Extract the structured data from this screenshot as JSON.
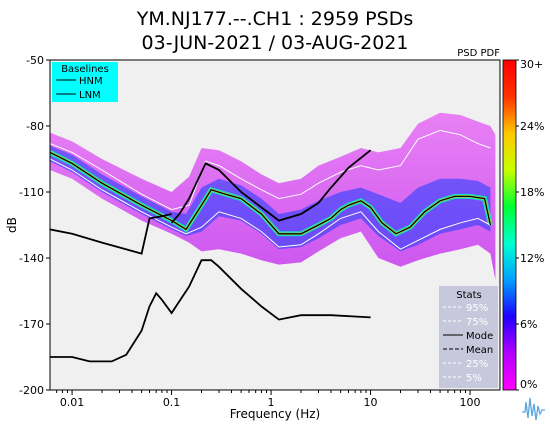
{
  "chart_data": {
    "type": "heatmap",
    "title_line1": "YM.NJ177.--.CH1 : 2959 PSDs",
    "title_line2": "03-JUN-2021 / 03-AUG-2021",
    "pdf_label": "PSD PDF",
    "xlabel": "Frequency (Hz)",
    "ylabel": "dB",
    "x_scale": "log",
    "xlim": [
      0.006,
      200
    ],
    "ylim": [
      -200,
      -50
    ],
    "x_ticks": [
      {
        "value": 0.01,
        "label": "0.01"
      },
      {
        "value": 0.1,
        "label": "0.1"
      },
      {
        "value": 1,
        "label": "1"
      },
      {
        "value": 10,
        "label": "10"
      },
      {
        "value": 100,
        "label": "100"
      }
    ],
    "y_ticks": [
      {
        "value": -50,
        "label": "-50"
      },
      {
        "value": -80,
        "label": "-80"
      },
      {
        "value": -110,
        "label": "-110"
      },
      {
        "value": -140,
        "label": "-140"
      },
      {
        "value": -170,
        "label": "-170"
      },
      {
        "value": -200,
        "label": "-200"
      }
    ],
    "colorbar": {
      "colors": [
        "#ff00ff",
        "#b400ff",
        "#1e00ff",
        "#00a0ff",
        "#00ffd2",
        "#00ff32",
        "#c8ff00",
        "#ffc800",
        "#ff3200",
        "#ff0000"
      ],
      "ticks": [
        {
          "value": 0,
          "label": "0%"
        },
        {
          "value": 6,
          "label": "6%"
        },
        {
          "value": 12,
          "label": "12%"
        },
        {
          "value": 18,
          "label": "18%"
        },
        {
          "value": 24,
          "label": "24%"
        },
        {
          "value": 30,
          "label": "30+"
        }
      ],
      "range": [
        0,
        30
      ]
    },
    "baselines_legend": {
      "title": "Baselines",
      "items": [
        "HNM",
        "LNM"
      ],
      "background": "#00ffff",
      "placement": "top-left"
    },
    "stats_legend": {
      "title": "Stats",
      "items": [
        {
          "label": "95%",
          "color": "#ffffff",
          "style": "dashed"
        },
        {
          "label": "75%",
          "color": "#ffffff",
          "style": "dashed"
        },
        {
          "label": "Mode",
          "color": "#000000",
          "style": "solid"
        },
        {
          "label": "Mean",
          "color": "#000000",
          "style": "dashed"
        },
        {
          "label": "25%",
          "color": "#ffffff",
          "style": "dashed"
        },
        {
          "label": "5%",
          "color": "#ffffff",
          "style": "dashed"
        }
      ],
      "background": "#c8c8dc",
      "placement": "bottom-right"
    },
    "series": [
      {
        "name": "HNM",
        "x": [
          0.1,
          0.12,
          0.15,
          0.22,
          0.3,
          0.5,
          0.8,
          1.2,
          2,
          3,
          4,
          6,
          10
        ],
        "y": [
          -124,
          -120,
          -113,
          -97,
          -100,
          -110,
          -117,
          -123,
          -120,
          -115,
          -108,
          -99,
          -91
        ]
      },
      {
        "name": "LNM",
        "x": [
          0.06,
          0.07,
          0.08,
          0.1,
          0.15,
          0.2,
          0.25,
          0.3,
          0.5,
          0.8,
          1.2,
          2,
          4,
          10
        ],
        "y": [
          -162,
          -156,
          -159,
          -165,
          -153,
          -141,
          -141,
          -144,
          -154,
          -162,
          -168,
          -166,
          -166,
          -167
        ]
      },
      {
        "name": "Low-frequency baseline",
        "x": [
          0.006,
          0.01,
          0.02,
          0.05,
          0.06,
          0.08,
          0.1
        ],
        "y": [
          -127,
          -129,
          -133,
          -138,
          -122,
          -121,
          -120
        ]
      },
      {
        "name": "LNM (long period)",
        "x": [
          0.006,
          0.01,
          0.015,
          0.025,
          0.035,
          0.05,
          0.06
        ],
        "y": [
          -185,
          -185,
          -187,
          -187,
          -184,
          -173,
          -162
        ]
      },
      {
        "name": "Mode",
        "x": [
          0.006,
          0.01,
          0.02,
          0.05,
          0.1,
          0.14,
          0.2,
          0.25,
          0.35,
          0.5,
          0.8,
          1.2,
          2,
          3,
          4,
          5,
          6,
          8,
          10,
          13,
          18,
          25,
          35,
          50,
          70,
          100,
          140,
          160
        ],
        "y": [
          -92,
          -97,
          -106,
          -116,
          -123,
          -127,
          -116,
          -109,
          -111,
          -113,
          -120,
          -129,
          -129,
          -125,
          -122,
          -118,
          -116,
          -114,
          -117,
          -124,
          -129,
          -126,
          -119,
          -114,
          -112,
          -112,
          -113,
          -125
        ]
      },
      {
        "name": "95%",
        "x": [
          0.006,
          0.01,
          0.02,
          0.05,
          0.1,
          0.15,
          0.22,
          0.3,
          0.5,
          0.8,
          1.2,
          2,
          3,
          5,
          8,
          12,
          20,
          30,
          50,
          80,
          120,
          160
        ],
        "y": [
          -88,
          -92,
          -100,
          -111,
          -118,
          -116,
          -96,
          -98,
          -104,
          -109,
          -113,
          -111,
          -106,
          -101,
          -98,
          -100,
          -98,
          -86,
          -82,
          -84,
          -88,
          -90
        ]
      },
      {
        "name": "5%",
        "x": [
          0.006,
          0.01,
          0.02,
          0.05,
          0.1,
          0.14,
          0.2,
          0.3,
          0.5,
          0.8,
          1.2,
          2,
          3,
          5,
          8,
          12,
          20,
          30,
          50,
          80,
          120,
          160
        ],
        "y": [
          -95,
          -100,
          -109,
          -119,
          -126,
          -129,
          -126,
          -119,
          -122,
          -128,
          -135,
          -134,
          -129,
          -122,
          -119,
          -128,
          -136,
          -132,
          -127,
          -124,
          -122,
          -125
        ]
      }
    ],
    "bands": [
      {
        "name": "PDF outer envelope",
        "x": [
          0.006,
          0.01,
          0.02,
          0.05,
          0.1,
          0.15,
          0.2,
          0.3,
          0.5,
          0.8,
          1.2,
          2,
          3,
          5,
          8,
          12,
          20,
          30,
          50,
          80,
          120,
          160,
          180
        ],
        "upper": [
          -83,
          -87,
          -95,
          -104,
          -110,
          -103,
          -90,
          -91,
          -96,
          -102,
          -106,
          -104,
          -98,
          -94,
          -90,
          -92,
          -90,
          -79,
          -74,
          -75,
          -78,
          -80,
          -84
        ],
        "lower": [
          -100,
          -104,
          -113,
          -123,
          -129,
          -133,
          -137,
          -136,
          -138,
          -141,
          -143,
          -142,
          -137,
          -131,
          -128,
          -140,
          -144,
          -141,
          -138,
          -136,
          -134,
          -138,
          -150
        ]
      },
      {
        "name": "PDF concentration",
        "x": [
          0.006,
          0.01,
          0.02,
          0.05,
          0.1,
          0.14,
          0.2,
          0.3,
          0.5,
          0.8,
          1.2,
          2,
          3,
          5,
          8,
          12,
          20,
          30,
          50,
          80,
          120,
          160
        ],
        "upper": [
          -89,
          -93,
          -102,
          -112,
          -119,
          -120,
          -108,
          -104,
          -107,
          -113,
          -120,
          -118,
          -114,
          -110,
          -108,
          -111,
          -115,
          -108,
          -104,
          -104,
          -105,
          -108
        ],
        "lower": [
          -96,
          -101,
          -110,
          -120,
          -127,
          -130,
          -128,
          -121,
          -123,
          -129,
          -136,
          -135,
          -131,
          -125,
          -122,
          -130,
          -137,
          -134,
          -129,
          -127,
          -125,
          -128
        ]
      }
    ]
  }
}
